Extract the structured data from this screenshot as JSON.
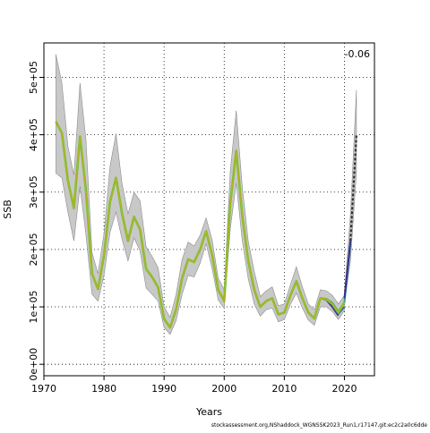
{
  "chart_data": {
    "type": "line",
    "title": "",
    "xlabel": "Years",
    "ylabel": "SSB",
    "xlim": [
      1970,
      2025
    ],
    "ylim": [
      -20000,
      560000
    ],
    "xticks": [
      1970,
      1980,
      1990,
      2000,
      2010,
      2020
    ],
    "xtick_labels": [
      "1970",
      "1980",
      "1990",
      "2000",
      "2010",
      "2020"
    ],
    "yticks": [
      0,
      100000,
      200000,
      300000,
      400000,
      500000
    ],
    "ytick_labels": [
      "0e+00",
      "1e+05",
      "2e+05",
      "3e+05",
      "4e+05",
      "5e+05"
    ],
    "grid": true,
    "corner_value": "-0.06",
    "caption": "stockassessment.org,NShaddock_WGNSSK2023_Run1,r17147,git:ec2c2a0c6dde",
    "colors": {
      "band": "#c8c8c8",
      "band_edge": "#8c8c8c",
      "main_line": "#78c030",
      "main_line_inner": "#c0b020",
      "peels": [
        "#3b2c8f",
        "#2b6fa8",
        "#22a5a5",
        "#3cbc74"
      ],
      "forecast": "#333333"
    },
    "series": [
      {
        "x": [
          1972,
          1973,
          1974,
          1975,
          1976,
          1977,
          1978,
          1979,
          1980,
          1981,
          1982,
          1983,
          1984,
          1985,
          1986,
          1987,
          1988,
          1989,
          1990,
          1991,
          1992,
          1993,
          1994,
          1995,
          1996,
          1997,
          1998,
          1999,
          2000,
          2001,
          2002,
          2003,
          2004,
          2005,
          2006,
          2007,
          2008,
          2009,
          2010,
          2011,
          2012,
          2013,
          2014,
          2015,
          2016,
          2017,
          2018,
          2019,
          2020
        ],
        "values": [
          423000,
          403000,
          320000,
          272000,
          397000,
          302000,
          158000,
          131000,
          190000,
          283000,
          325000,
          263000,
          215000,
          257000,
          235000,
          166000,
          152000,
          134000,
          79000,
          64000,
          96000,
          150000,
          183000,
          178000,
          200000,
          232000,
          190000,
          130000,
          110000,
          280000,
          372000,
          260000,
          180000,
          130000,
          100000,
          110000,
          115000,
          87000,
          90000,
          120000,
          145000,
          115000,
          90000,
          80000,
          115000,
          113000,
          105000,
          90000,
          108000
        ],
        "upper": [
          540000,
          490000,
          380000,
          330000,
          490000,
          390000,
          195000,
          158000,
          228000,
          345000,
          402000,
          315000,
          262000,
          300000,
          285000,
          205000,
          188000,
          168000,
          100000,
          82000,
          122000,
          183000,
          213000,
          206000,
          225000,
          255000,
          216000,
          150000,
          130000,
          335000,
          442000,
          310000,
          215000,
          162000,
          118000,
          128000,
          135000,
          102000,
          105000,
          138000,
          170000,
          135000,
          105000,
          95000,
          130000,
          128000,
          120000,
          105000,
          120000
        ],
        "lower": [
          333000,
          325000,
          265000,
          215000,
          310000,
          225000,
          122000,
          110000,
          155000,
          230000,
          265000,
          218000,
          180000,
          220000,
          198000,
          133000,
          122000,
          110000,
          64000,
          52000,
          76000,
          122000,
          155000,
          152000,
          176000,
          210000,
          166000,
          112000,
          97000,
          235000,
          316000,
          216000,
          149000,
          105000,
          84000,
          95000,
          98000,
          74000,
          78000,
          104000,
          124000,
          98000,
          77000,
          68000,
          100000,
          100000,
          92000,
          78000,
          94000
        ]
      }
    ],
    "peels": [
      {
        "x": [
          2016,
          2017,
          2018,
          2019
        ],
        "values": [
          115000,
          112000,
          100000,
          85000
        ]
      },
      {
        "x": [
          2016,
          2017,
          2018,
          2019,
          2020
        ],
        "values": [
          115000,
          114000,
          104000,
          88000,
          100000
        ]
      },
      {
        "x": [
          2017,
          2018,
          2019,
          2020,
          2021
        ],
        "values": [
          114000,
          107000,
          92000,
          108000,
          210000
        ]
      }
    ],
    "forecast": {
      "x": [
        2020,
        2021,
        2022
      ],
      "values": [
        115000,
        215000,
        400000
      ],
      "upper": [
        125000,
        260000,
        478000
      ],
      "lower": [
        105000,
        180000,
        335000
      ]
    }
  }
}
